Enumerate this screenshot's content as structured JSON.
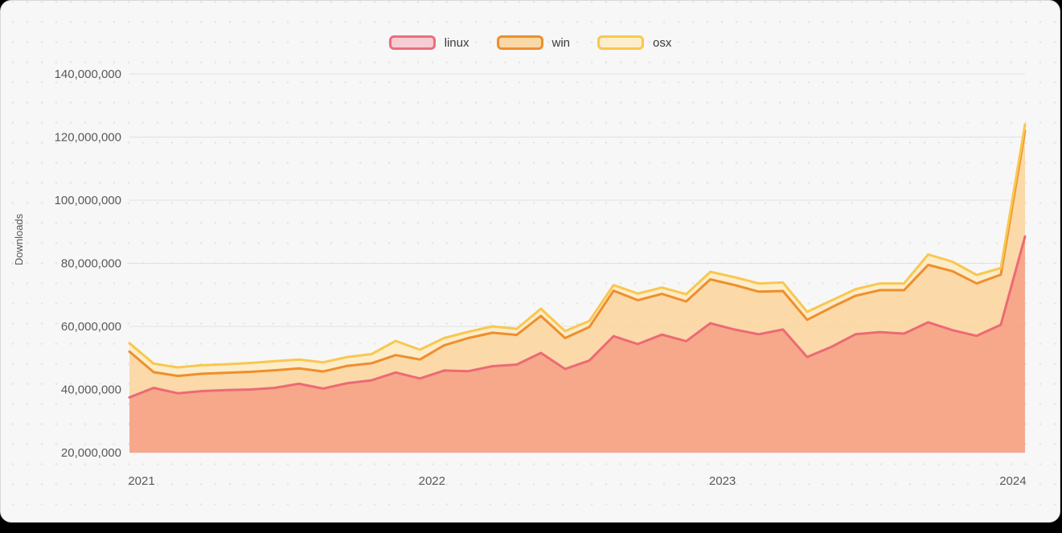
{
  "window": {
    "backdrop_color": "#000000",
    "card_color": "#f7f7f8"
  },
  "legend": [
    {
      "label": "linux",
      "swatch_fill": "#f7ccd2",
      "swatch_border": "#ea6f7b"
    },
    {
      "label": "win",
      "swatch_fill": "#fbd9a6",
      "swatch_border": "#ef8e2d"
    },
    {
      "label": "osx",
      "swatch_fill": "#fdeecb",
      "swatch_border": "#f9c74f"
    }
  ],
  "chart_data": {
    "type": "area",
    "stacked": true,
    "title": "",
    "xlabel": "",
    "ylabel": "Downloads",
    "grid": "horizontal",
    "legend_position": "top-center",
    "y_min": 20000000,
    "y_max": 140000000,
    "y_ticks": [
      20000000,
      40000000,
      60000000,
      80000000,
      100000000,
      120000000,
      140000000
    ],
    "x_tick_labels": [
      "2021",
      "2022",
      "2023",
      "2024"
    ],
    "x_tick_indices": [
      0,
      12,
      24,
      36
    ],
    "categories": [
      "2021-01",
      "2021-02",
      "2021-03",
      "2021-04",
      "2021-05",
      "2021-06",
      "2021-07",
      "2021-08",
      "2021-09",
      "2021-10",
      "2021-11",
      "2021-12",
      "2022-01",
      "2022-02",
      "2022-03",
      "2022-04",
      "2022-05",
      "2022-06",
      "2022-07",
      "2022-08",
      "2022-09",
      "2022-10",
      "2022-11",
      "2022-12",
      "2023-01",
      "2023-02",
      "2023-03",
      "2023-04",
      "2023-05",
      "2023-06",
      "2023-07",
      "2023-08",
      "2023-09",
      "2023-10",
      "2023-11",
      "2023-12",
      "2024-01",
      "2024-02"
    ],
    "series": [
      {
        "name": "linux",
        "line_color": "#ec6a76",
        "fill_color": "#f79a77",
        "values": [
          37500000,
          40500000,
          38800000,
          39500000,
          39800000,
          40000000,
          40500000,
          41800000,
          40300000,
          42000000,
          42900000,
          45400000,
          43500000,
          46000000,
          45800000,
          47400000,
          47900000,
          51600000,
          46500000,
          49200000,
          56900000,
          54400000,
          57400000,
          55300000,
          61000000,
          59000000,
          57500000,
          59000000,
          50300000,
          53500000,
          57500000,
          58200000,
          57700000,
          61300000,
          58800000,
          57000000,
          60500000,
          88500000
        ]
      },
      {
        "name": "win",
        "line_color": "#ef8e2d",
        "fill_color": "#fbd49a",
        "values": [
          14500000,
          5000000,
          5500000,
          5500000,
          5500000,
          5600000,
          5600000,
          4900000,
          5400000,
          5500000,
          5400000,
          5500000,
          6000000,
          8000000,
          10500000,
          10600000,
          9400000,
          11700000,
          9800000,
          10600000,
          14400000,
          13900000,
          12900000,
          12600000,
          13900000,
          14100000,
          13500000,
          12200000,
          11800000,
          12500000,
          12200000,
          13300000,
          13800000,
          18200000,
          18700000,
          16600000,
          15900000,
          33500000
        ]
      },
      {
        "name": "osx",
        "line_color": "#f9c74f",
        "fill_color": "#fdeac0",
        "values": [
          2700000,
          2700000,
          2700000,
          2700000,
          2700000,
          2800000,
          2900000,
          2800000,
          2900000,
          2800000,
          2900000,
          4500000,
          3100000,
          2300000,
          2000000,
          2000000,
          1900000,
          2300000,
          2200000,
          1900000,
          1800000,
          2100000,
          2000000,
          2300000,
          2400000,
          2500000,
          2600000,
          2700000,
          2500000,
          2200000,
          2100000,
          2100000,
          2100000,
          3300000,
          3000000,
          2700000,
          2100000,
          2000000
        ]
      }
    ]
  }
}
